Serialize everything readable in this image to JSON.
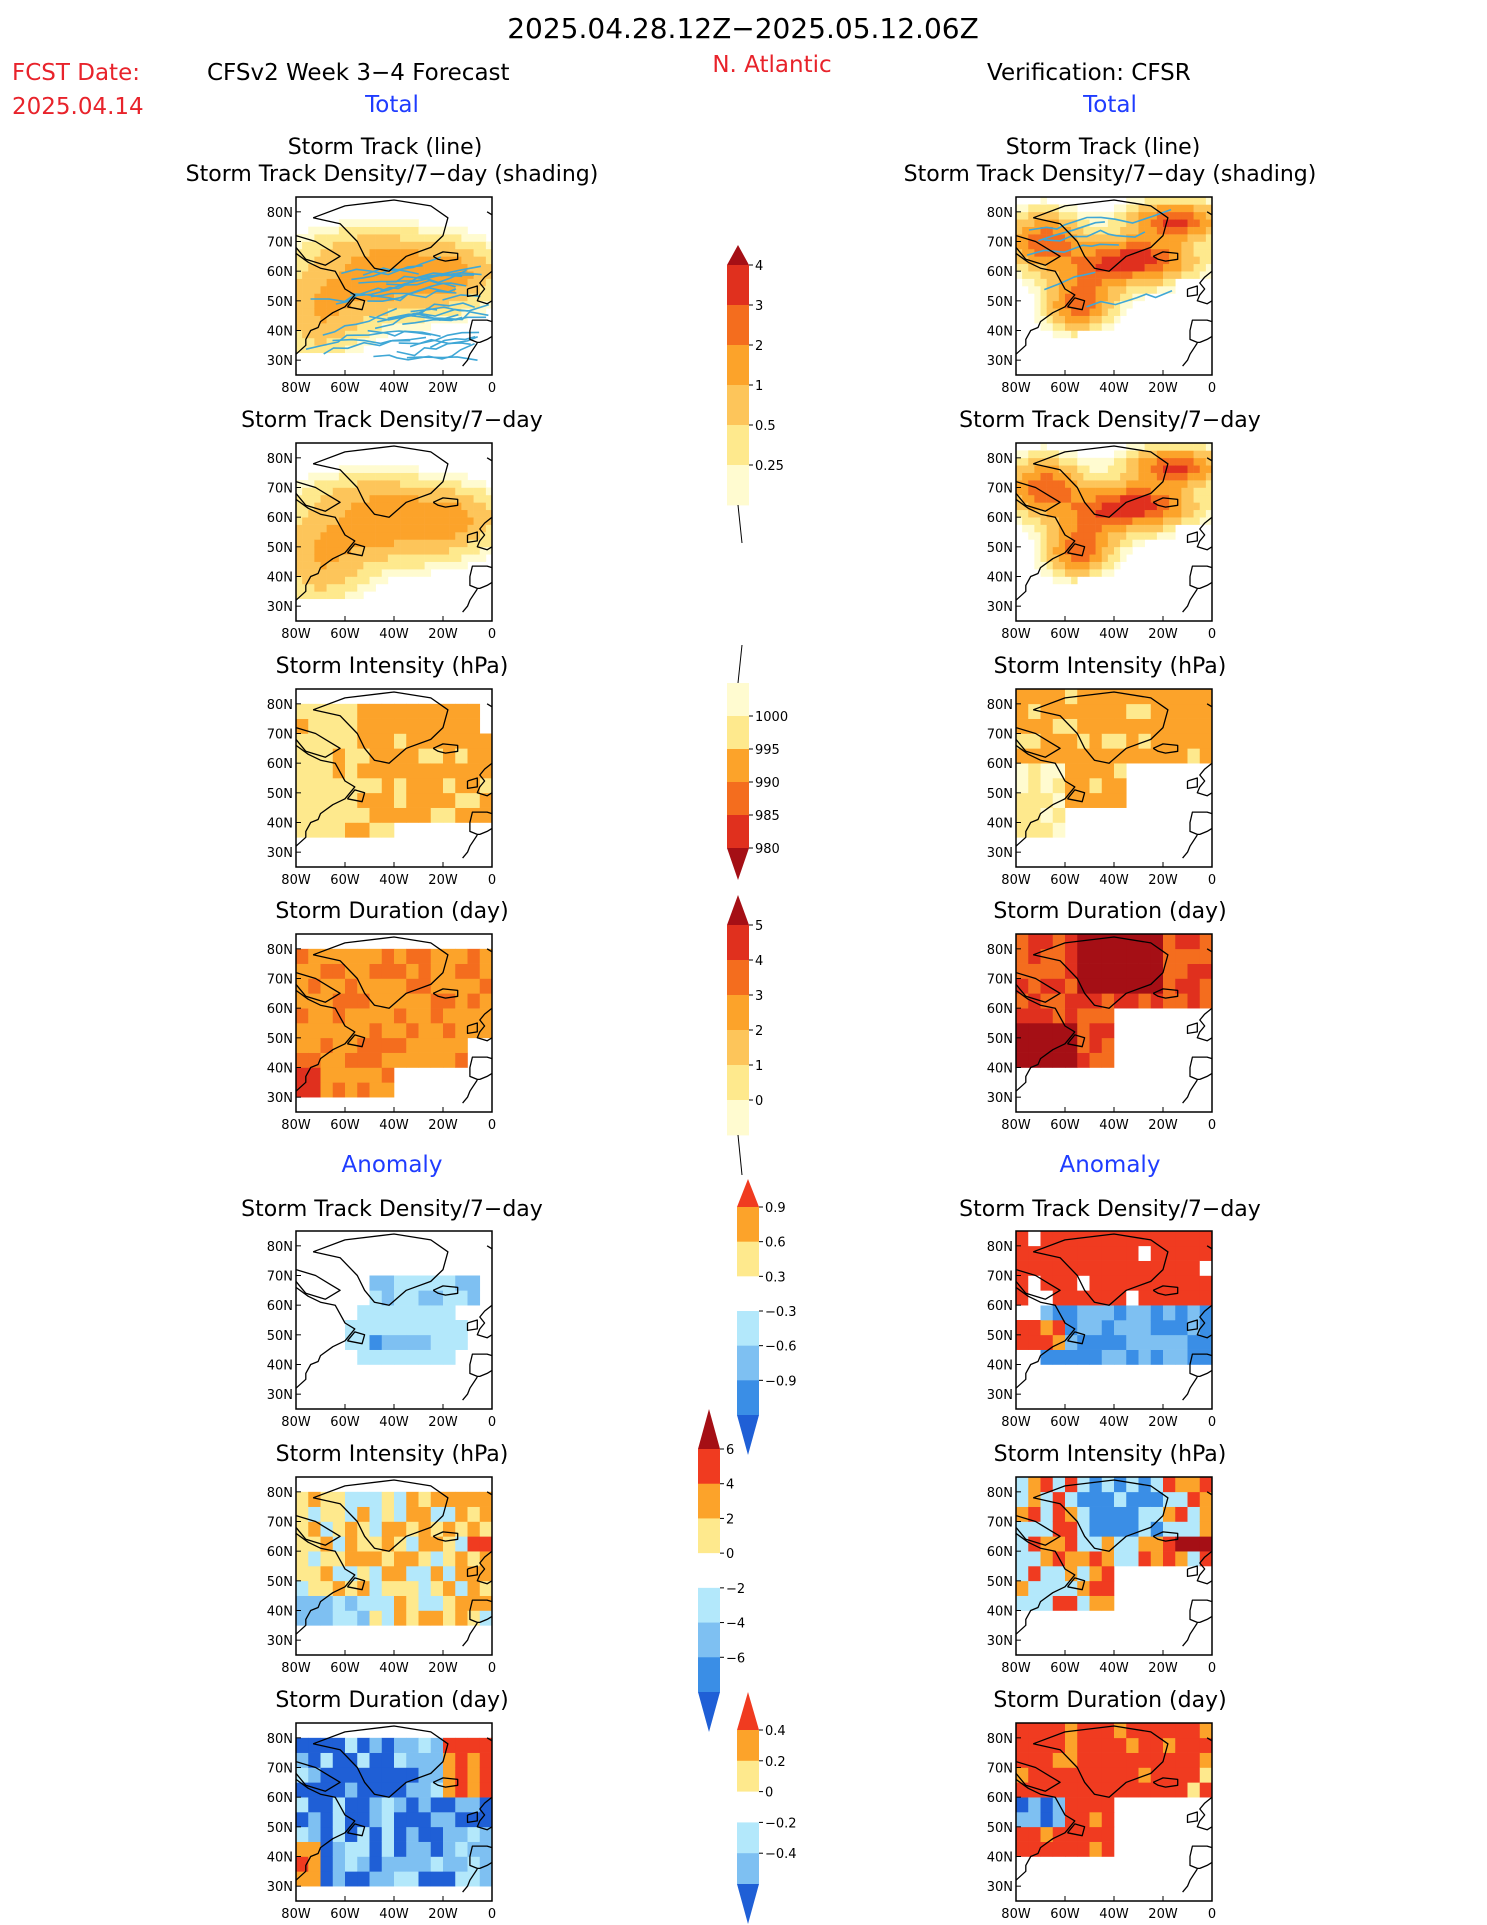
{
  "header": {
    "date_range": "2025.04.28.12Z−2025.05.12.06Z",
    "fcst_label": "FCST Date:",
    "fcst_date": "2025.04.14",
    "model_title": "CFSv2 Week 3−4 Forecast",
    "region": "N. Atlantic",
    "verification": "Verification: CFSR",
    "total_label": "Total",
    "anomaly_label": "Anomaly"
  },
  "colors": {
    "red_text": "#e8232b",
    "blue_text": "#1f3cff"
  },
  "panel_titles": {
    "track_line": "Storm Track (line)",
    "track_shading": "Storm Track Density/7−day (shading)",
    "density": "Storm Track Density/7−day",
    "intensity": "Storm Intensity (hPa)",
    "duration": "Storm Duration (day)"
  },
  "axes": {
    "lat_ticks": [
      "80N",
      "70N",
      "60N",
      "50N",
      "40N",
      "30N"
    ],
    "lon_ticks": [
      "80W",
      "60W",
      "40W",
      "20W",
      "0"
    ]
  },
  "colorbars": [
    {
      "name": "density",
      "labels": [
        "4",
        "3",
        "2",
        "1",
        "0.5",
        "0.25"
      ],
      "colors": [
        "#a50f15",
        "#e0301e",
        "#f46d1e",
        "#fca32a",
        "#fdc55a",
        "#fee98d",
        "#fffbd0"
      ],
      "extend_top": true,
      "extend_bottom": false
    },
    {
      "name": "intensity",
      "labels": [
        "1000",
        "995",
        "990",
        "985",
        "980"
      ],
      "colors": [
        "#fffbd0",
        "#fee98d",
        "#fca32a",
        "#f46d1e",
        "#e0301e",
        "#a50f15"
      ],
      "extend_top": false,
      "extend_bottom": true
    },
    {
      "name": "duration",
      "labels": [
        "5",
        "4",
        "3",
        "2",
        "1",
        "0"
      ],
      "colors": [
        "#a50f15",
        "#e0301e",
        "#f46d1e",
        "#fca32a",
        "#fdc55a",
        "#fee98d",
        "#fffbd0"
      ],
      "extend_top": true,
      "extend_bottom": false
    },
    {
      "name": "anom_density",
      "labels": [
        "0.9",
        "0.6",
        "0.3",
        "−0.3",
        "−0.6",
        "−0.9"
      ],
      "colors": [
        "#f03b20",
        "#fca32a",
        "#fee98d",
        "#ffffff",
        "#b3e8fb",
        "#7ec0f2",
        "#3a8ee6",
        "#1f5fd6"
      ],
      "extend_top": true,
      "extend_bottom": true
    },
    {
      "name": "anom_intensity",
      "labels": [
        "6",
        "4",
        "2",
        "0",
        "−2",
        "−4",
        "−6"
      ],
      "colors": [
        "#a50f15",
        "#f03b20",
        "#fca32a",
        "#fee98d",
        "#ffffff",
        "#b3e8fb",
        "#7ec0f2",
        "#3a8ee6",
        "#1f5fd6"
      ],
      "extend_top": true,
      "extend_bottom": true
    },
    {
      "name": "anom_duration",
      "labels": [
        "0.4",
        "0.2",
        "0",
        "−0.2",
        "−0.4"
      ],
      "colors": [
        "#f03b20",
        "#fca32a",
        "#fee98d",
        "#ffffff",
        "#b3e8fb",
        "#7ec0f2",
        "#1f5fd6"
      ],
      "extend_top": true,
      "extend_bottom": true
    }
  ],
  "chart_data": [
    {
      "type": "heatmap",
      "column": "forecast",
      "section": "total",
      "title": "Storm Track (line) / Storm Track Density/7−day (shading)",
      "xlim": [
        -80,
        0
      ],
      "ylim": [
        25,
        85
      ]
    },
    {
      "type": "heatmap",
      "column": "verification",
      "section": "total",
      "title": "Storm Track (line) / Storm Track Density/7−day (shading)",
      "xlim": [
        -80,
        0
      ],
      "ylim": [
        25,
        85
      ]
    },
    {
      "type": "heatmap",
      "column": "forecast",
      "section": "total",
      "title": "Storm Track Density/7−day",
      "xlim": [
        -80,
        0
      ],
      "ylim": [
        25,
        85
      ]
    },
    {
      "type": "heatmap",
      "column": "verification",
      "section": "total",
      "title": "Storm Track Density/7−day",
      "xlim": [
        -80,
        0
      ],
      "ylim": [
        25,
        85
      ]
    },
    {
      "type": "heatmap",
      "column": "forecast",
      "section": "total",
      "title": "Storm Intensity (hPa)",
      "xlim": [
        -80,
        0
      ],
      "ylim": [
        25,
        85
      ]
    },
    {
      "type": "heatmap",
      "column": "verification",
      "section": "total",
      "title": "Storm Intensity (hPa)",
      "xlim": [
        -80,
        0
      ],
      "ylim": [
        25,
        85
      ]
    },
    {
      "type": "heatmap",
      "column": "forecast",
      "section": "total",
      "title": "Storm Duration (day)",
      "xlim": [
        -80,
        0
      ],
      "ylim": [
        25,
        85
      ]
    },
    {
      "type": "heatmap",
      "column": "verification",
      "section": "total",
      "title": "Storm Duration (day)",
      "xlim": [
        -80,
        0
      ],
      "ylim": [
        25,
        85
      ]
    },
    {
      "type": "heatmap",
      "column": "forecast",
      "section": "anomaly",
      "title": "Storm Track Density/7−day",
      "xlim": [
        -80,
        0
      ],
      "ylim": [
        25,
        85
      ]
    },
    {
      "type": "heatmap",
      "column": "verification",
      "section": "anomaly",
      "title": "Storm Track Density/7−day",
      "xlim": [
        -80,
        0
      ],
      "ylim": [
        25,
        85
      ]
    },
    {
      "type": "heatmap",
      "column": "forecast",
      "section": "anomaly",
      "title": "Storm Intensity (hPa)",
      "xlim": [
        -80,
        0
      ],
      "ylim": [
        25,
        85
      ]
    },
    {
      "type": "heatmap",
      "column": "verification",
      "section": "anomaly",
      "title": "Storm Intensity (hPa)",
      "xlim": [
        -80,
        0
      ],
      "ylim": [
        25,
        85
      ]
    },
    {
      "type": "heatmap",
      "column": "forecast",
      "section": "anomaly",
      "title": "Storm Duration (day)",
      "xlim": [
        -80,
        0
      ],
      "ylim": [
        25,
        85
      ]
    },
    {
      "type": "heatmap",
      "column": "verification",
      "section": "anomaly",
      "title": "Storm Duration (day)",
      "xlim": [
        -80,
        0
      ],
      "ylim": [
        25,
        85
      ]
    }
  ]
}
